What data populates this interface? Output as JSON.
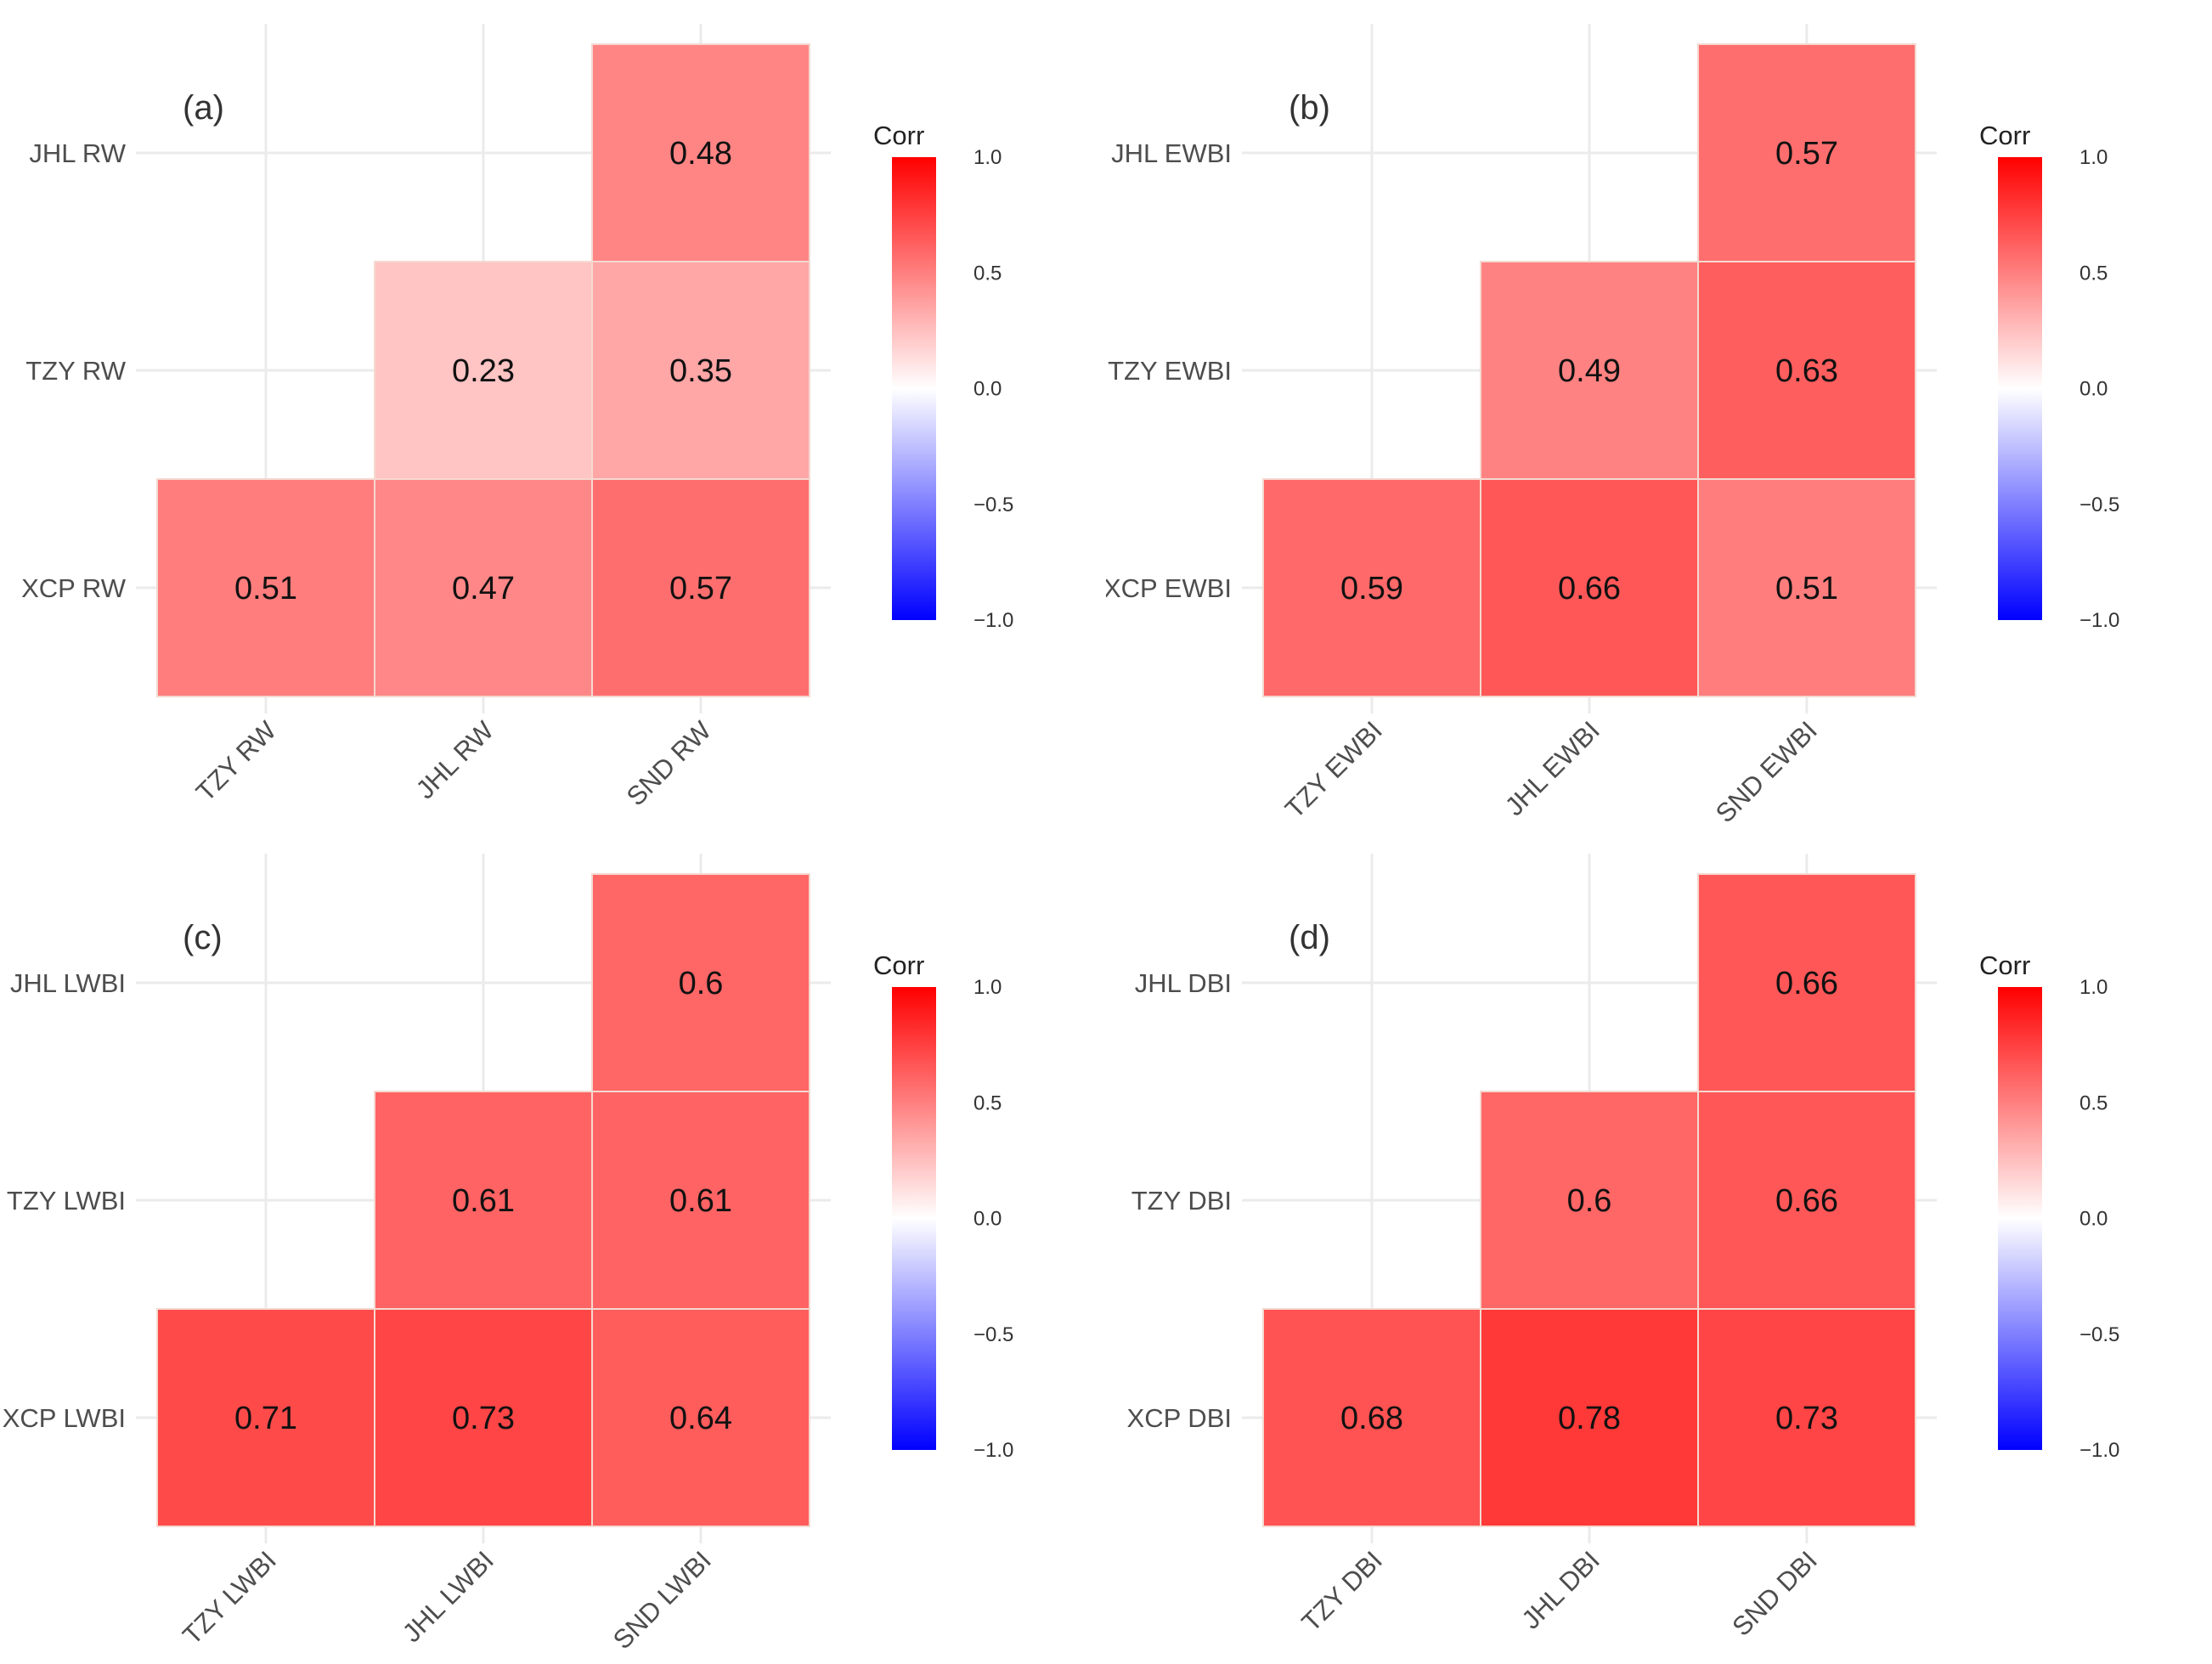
{
  "chart_data": [
    {
      "type": "heatmap",
      "panel_label": "(a)",
      "x_labels": [
        "TZY RW",
        "JHL RW",
        "SND RW"
      ],
      "y_labels": [
        "JHL RW",
        "TZY RW",
        "XCP RW"
      ],
      "cells": [
        {
          "x": "SND RW",
          "y": "JHL RW",
          "value": 0.48,
          "label": "0.48"
        },
        {
          "x": "JHL RW",
          "y": "TZY RW",
          "value": 0.23,
          "label": "0.23"
        },
        {
          "x": "SND RW",
          "y": "TZY RW",
          "value": 0.35,
          "label": "0.35"
        },
        {
          "x": "TZY RW",
          "y": "XCP RW",
          "value": 0.51,
          "label": "0.51"
        },
        {
          "x": "JHL RW",
          "y": "XCP RW",
          "value": 0.47,
          "label": "0.47"
        },
        {
          "x": "SND RW",
          "y": "XCP RW",
          "value": 0.57,
          "label": "0.57"
        }
      ],
      "legend": {
        "title": "Corr",
        "ticks": [
          "1.0",
          "0.5",
          "0.0",
          "−0.5",
          "−1.0"
        ],
        "range": [
          -1,
          1
        ]
      }
    },
    {
      "type": "heatmap",
      "panel_label": "(b)",
      "x_labels": [
        "TZY EWBI",
        "JHL EWBI",
        "SND EWBI"
      ],
      "y_labels": [
        "JHL EWBI",
        "TZY EWBI",
        "XCP EWBI"
      ],
      "cells": [
        {
          "x": "SND EWBI",
          "y": "JHL EWBI",
          "value": 0.57,
          "label": "0.57"
        },
        {
          "x": "JHL EWBI",
          "y": "TZY EWBI",
          "value": 0.49,
          "label": "0.49"
        },
        {
          "x": "SND EWBI",
          "y": "TZY EWBI",
          "value": 0.63,
          "label": "0.63"
        },
        {
          "x": "TZY EWBI",
          "y": "XCP EWBI",
          "value": 0.59,
          "label": "0.59"
        },
        {
          "x": "JHL EWBI",
          "y": "XCP EWBI",
          "value": 0.66,
          "label": "0.66"
        },
        {
          "x": "SND EWBI",
          "y": "XCP EWBI",
          "value": 0.51,
          "label": "0.51"
        }
      ],
      "legend": {
        "title": "Corr",
        "ticks": [
          "1.0",
          "0.5",
          "0.0",
          "−0.5",
          "−1.0"
        ],
        "range": [
          -1,
          1
        ]
      }
    },
    {
      "type": "heatmap",
      "panel_label": "(c)",
      "x_labels": [
        "TZY LWBI",
        "JHL LWBI",
        "SND LWBI"
      ],
      "y_labels": [
        "JHL LWBI",
        "TZY LWBI",
        "XCP LWBI"
      ],
      "cells": [
        {
          "x": "SND LWBI",
          "y": "JHL LWBI",
          "value": 0.6,
          "label": "0.6"
        },
        {
          "x": "JHL LWBI",
          "y": "TZY LWBI",
          "value": 0.61,
          "label": "0.61"
        },
        {
          "x": "SND LWBI",
          "y": "TZY LWBI",
          "value": 0.61,
          "label": "0.61"
        },
        {
          "x": "TZY LWBI",
          "y": "XCP LWBI",
          "value": 0.71,
          "label": "0.71"
        },
        {
          "x": "JHL LWBI",
          "y": "XCP LWBI",
          "value": 0.73,
          "label": "0.73"
        },
        {
          "x": "SND LWBI",
          "y": "XCP LWBI",
          "value": 0.64,
          "label": "0.64"
        }
      ],
      "legend": {
        "title": "Corr",
        "ticks": [
          "1.0",
          "0.5",
          "0.0",
          "−0.5",
          "−1.0"
        ],
        "range": [
          -1,
          1
        ]
      }
    },
    {
      "type": "heatmap",
      "panel_label": "(d)",
      "x_labels": [
        "TZY DBI",
        "JHL DBI",
        "SND DBI"
      ],
      "y_labels": [
        "JHL DBI",
        "TZY DBI",
        "XCP DBI"
      ],
      "cells": [
        {
          "x": "SND DBI",
          "y": "JHL DBI",
          "value": 0.66,
          "label": "0.66"
        },
        {
          "x": "JHL DBI",
          "y": "TZY DBI",
          "value": 0.6,
          "label": "0.6"
        },
        {
          "x": "SND DBI",
          "y": "TZY DBI",
          "value": 0.66,
          "label": "0.66"
        },
        {
          "x": "TZY DBI",
          "y": "XCP DBI",
          "value": 0.68,
          "label": "0.68"
        },
        {
          "x": "JHL DBI",
          "y": "XCP DBI",
          "value": 0.78,
          "label": "0.78"
        },
        {
          "x": "SND DBI",
          "y": "XCP DBI",
          "value": 0.73,
          "label": "0.73"
        }
      ],
      "legend": {
        "title": "Corr",
        "ticks": [
          "1.0",
          "0.5",
          "0.0",
          "−0.5",
          "−1.0"
        ],
        "range": [
          -1,
          1
        ]
      }
    }
  ],
  "colors": {
    "low": "#0000ff",
    "mid": "#ffffff",
    "high": "#ff0000",
    "grid": "#ebebeb",
    "cell_border": "#f4d9d0"
  }
}
